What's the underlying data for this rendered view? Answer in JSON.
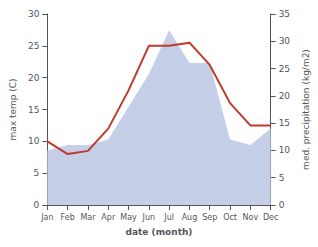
{
  "chart_data": {
    "type": "line",
    "categories": [
      "Jan",
      "Feb",
      "Mar",
      "Apr",
      "May",
      "Jun",
      "Jul",
      "Aug",
      "Sep",
      "Oct",
      "Nov",
      "Dec"
    ],
    "xlabel": "date (month)",
    "ylabel": "max temp (C)",
    "y2label": "med. precipitation (kg/m2)",
    "series": [
      {
        "type": "area",
        "color": "#c5cfe8",
        "axis": "y2",
        "values": [
          10,
          11,
          11,
          12,
          18,
          24,
          32,
          26,
          26,
          12,
          11,
          14
        ]
      },
      {
        "type": "line",
        "color": "#c0392b",
        "values": [
          10,
          8,
          8.5,
          12,
          18,
          25,
          25,
          25.5,
          22,
          16,
          12.5,
          12.5
        ]
      }
    ],
    "ylim": [
      0,
      30
    ],
    "yticks": [
      0,
      5,
      10,
      15,
      20,
      25,
      30
    ],
    "y2lim": [
      0,
      35
    ],
    "y2ticks": [
      0,
      5,
      10,
      15,
      20,
      25,
      30,
      35
    ],
    "grid": false
  }
}
